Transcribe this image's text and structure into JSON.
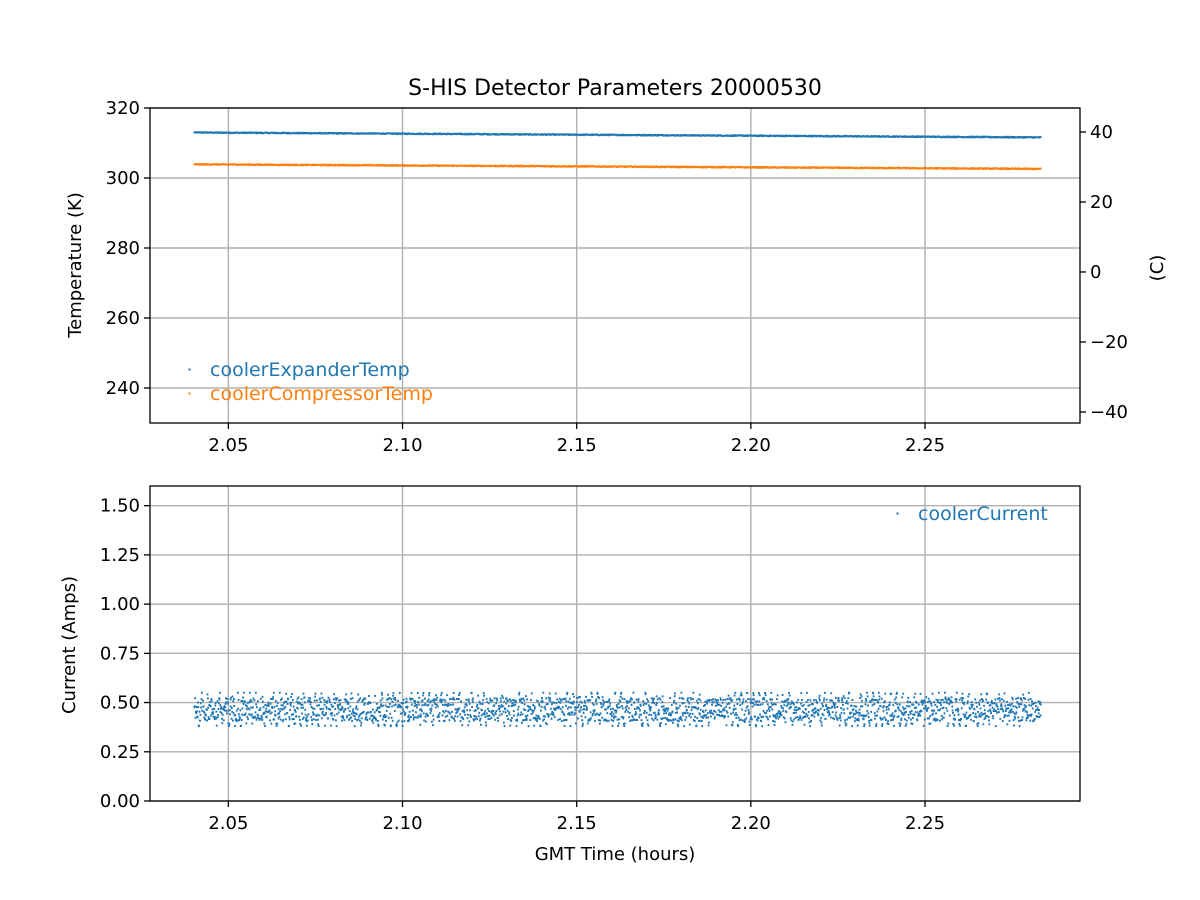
{
  "figure": {
    "title": "S-HIS Detector Parameters 20000530"
  },
  "colors": {
    "expander": "#1f77b4",
    "compressor": "#ff7f0e",
    "current": "#1f77b4",
    "grid": "#b0b0b0"
  },
  "chart_data": [
    {
      "type": "scatter",
      "title": "S-HIS Detector Parameters 20000530",
      "xlabel": "",
      "ylabel": "Temperature (K)",
      "y2label": "(C)",
      "xlim": [
        2.0275,
        2.2945
      ],
      "ylim": [
        230,
        320
      ],
      "y2lim": [
        -43.15,
        46.85
      ],
      "xticks": [
        "2.05",
        "2.10",
        "2.15",
        "2.20",
        "2.25"
      ],
      "yticks": [
        "240",
        "260",
        "280",
        "300",
        "320"
      ],
      "y2ticks": [
        "−40",
        "−20",
        "0",
        "20",
        "40"
      ],
      "grid": true,
      "legend_position": "lower-left",
      "series": [
        {
          "name": "coolerExpanderTemp",
          "x_range": [
            2.04,
            2.283
          ],
          "y_start": 313.0,
          "y_end": 311.6,
          "noise": 0.25
        },
        {
          "name": "coolerCompressorTemp",
          "x_range": [
            2.04,
            2.283
          ],
          "y_start": 303.9,
          "y_end": 302.6,
          "noise": 0.25
        }
      ]
    },
    {
      "type": "scatter",
      "xlabel": "GMT Time (hours)",
      "ylabel": "Current (Amps)",
      "xlim": [
        2.0275,
        2.2945
      ],
      "ylim": [
        0.0,
        1.6
      ],
      "xticks": [
        "2.05",
        "2.10",
        "2.15",
        "2.20",
        "2.25"
      ],
      "yticks": [
        "0.00",
        "0.25",
        "0.50",
        "0.75",
        "1.00",
        "1.25",
        "1.50"
      ],
      "grid": true,
      "legend_position": "upper-right",
      "series": [
        {
          "name": "coolerCurrent",
          "x_range": [
            2.04,
            2.283
          ],
          "y_min": 0.38,
          "y_max": 0.55,
          "center": 0.46,
          "n_points": 2400
        }
      ]
    }
  ]
}
